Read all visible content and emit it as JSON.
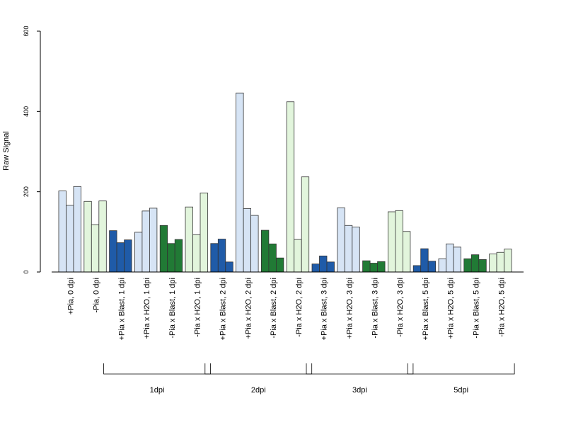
{
  "chart_data": {
    "type": "bar",
    "title": "",
    "xlabel": "",
    "ylabel": "Raw Signal",
    "ylim": [
      0,
      600
    ],
    "yticks": [
      0,
      200,
      400,
      600
    ],
    "grid": false,
    "legend": "none",
    "colors": {
      "light_blue": "#d6e4f5",
      "light_green": "#e2f5dc",
      "dark_blue": "#1f5ba8",
      "dark_green": "#217a35"
    },
    "categories": [
      {
        "label": "+Pia, 0 dpi",
        "color": "light_blue",
        "values": [
          202,
          166,
          213
        ]
      },
      {
        "label": "-Pia, 0 dpi",
        "color": "light_green",
        "values": [
          176,
          118,
          177
        ]
      },
      {
        "label": "+Pia x Blast, 1 dpi",
        "color": "dark_blue",
        "values": [
          103,
          73,
          80
        ]
      },
      {
        "label": "+Pia x H2O, 1 dpi",
        "color": "light_blue",
        "values": [
          99,
          152,
          159
        ]
      },
      {
        "label": "-Pia x Blast, 1 dpi",
        "color": "dark_green",
        "values": [
          116,
          71,
          81
        ]
      },
      {
        "label": "-Pia x H2O, 1 dpi",
        "color": "light_green",
        "values": [
          162,
          93,
          197
        ]
      },
      {
        "label": "+Pia x Blast, 2 dpi",
        "color": "dark_blue",
        "values": [
          71,
          82,
          25
        ]
      },
      {
        "label": "+Pia x H2O, 2 dpi",
        "color": "light_blue",
        "values": [
          446,
          158,
          141
        ]
      },
      {
        "label": "-Pia x Blast, 2 dpi",
        "color": "dark_green",
        "values": [
          104,
          70,
          35
        ]
      },
      {
        "label": "-Pia x H2O, 2 dpi",
        "color": "light_green",
        "values": [
          424,
          81,
          237
        ]
      },
      {
        "label": "+Pia x Blast, 3 dpi",
        "color": "dark_blue",
        "values": [
          20,
          40,
          25
        ]
      },
      {
        "label": "+Pia x H2O, 3 dpi",
        "color": "light_blue",
        "values": [
          160,
          116,
          112
        ]
      },
      {
        "label": "-Pia x Blast, 3 dpi",
        "color": "dark_green",
        "values": [
          28,
          22,
          26
        ]
      },
      {
        "label": "-Pia x H2O, 3 dpi",
        "color": "light_green",
        "values": [
          150,
          153,
          101
        ]
      },
      {
        "label": "+Pia x Blast, 5 dpi",
        "color": "dark_blue",
        "values": [
          16,
          58,
          27
        ]
      },
      {
        "label": "+Pia x H2O, 5 dpi",
        "color": "light_blue",
        "values": [
          33,
          70,
          62
        ]
      },
      {
        "label": "-Pia x Blast, 5 dpi",
        "color": "dark_green",
        "values": [
          33,
          43,
          31
        ]
      },
      {
        "label": "-Pia x H2O, 5 dpi",
        "color": "light_green",
        "values": [
          45,
          49,
          57
        ]
      }
    ],
    "groups": [
      {
        "label": "1dpi",
        "from": 2,
        "to": 5
      },
      {
        "label": "2dpi",
        "from": 6,
        "to": 9
      },
      {
        "label": "3dpi",
        "from": 10,
        "to": 13
      },
      {
        "label": "5dpi",
        "from": 14,
        "to": 17
      }
    ]
  }
}
